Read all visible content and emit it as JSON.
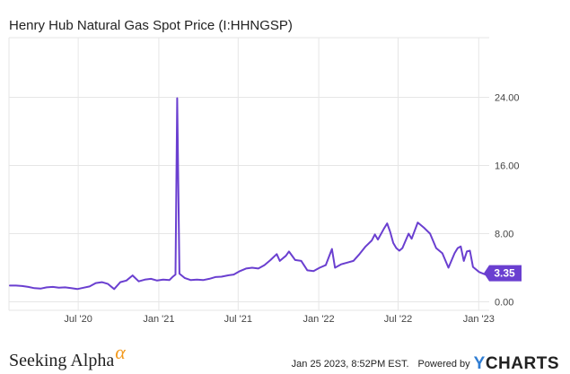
{
  "header": {
    "title": "Henry Hub Natural Gas Spot Price (I:HHNGSP)"
  },
  "footer": {
    "brand": "Seeking Alpha",
    "brand_alpha": "α",
    "timestamp": "Jan 25 2023, 8:52PM EST.",
    "powered_by": "Powered by",
    "ycharts_y": "Y",
    "ycharts_rest": "CHARTS"
  },
  "colors": {
    "line": "#6a3fd0",
    "grid": "#e6e6e6",
    "badge": "#6a3fd0",
    "brand_alpha": "#f39a1e",
    "ycharts_y": "#2f7dd3"
  },
  "chart_data": {
    "type": "line",
    "title": "Henry Hub Natural Gas Spot Price (I:HHNGSP)",
    "x_ticks": [
      {
        "date": "2020-07-01",
        "label": "Jul '20"
      },
      {
        "date": "2021-01-01",
        "label": "Jan '21"
      },
      {
        "date": "2021-07-01",
        "label": "Jul '21"
      },
      {
        "date": "2022-01-01",
        "label": "Jan '22"
      },
      {
        "date": "2022-07-01",
        "label": "Jul '22"
      },
      {
        "date": "2023-01-01",
        "label": "Jan '23"
      }
    ],
    "y_ticks": [
      {
        "value": 0,
        "label": "0.00"
      },
      {
        "value": 8,
        "label": "8.00"
      },
      {
        "value": 16,
        "label": "16.00"
      },
      {
        "value": 24,
        "label": "24.00"
      }
    ],
    "xlim": [
      "2020-01-25",
      "2023-01-25"
    ],
    "ylim": [
      -1,
      31
    ],
    "grid": true,
    "last_value_label": "3.35",
    "series": [
      {
        "points": [
          [
            "2020-01-27",
            1.9
          ],
          [
            "2020-02-10",
            1.9
          ],
          [
            "2020-02-24",
            1.85
          ],
          [
            "2020-03-09",
            1.75
          ],
          [
            "2020-03-23",
            1.6
          ],
          [
            "2020-04-06",
            1.55
          ],
          [
            "2020-04-20",
            1.7
          ],
          [
            "2020-05-04",
            1.75
          ],
          [
            "2020-05-18",
            1.65
          ],
          [
            "2020-06-01",
            1.7
          ],
          [
            "2020-06-15",
            1.6
          ],
          [
            "2020-06-29",
            1.5
          ],
          [
            "2020-07-13",
            1.65
          ],
          [
            "2020-07-27",
            1.8
          ],
          [
            "2020-08-10",
            2.2
          ],
          [
            "2020-08-24",
            2.3
          ],
          [
            "2020-09-07",
            2.1
          ],
          [
            "2020-09-21",
            1.5
          ],
          [
            "2020-10-05",
            2.3
          ],
          [
            "2020-10-19",
            2.5
          ],
          [
            "2020-11-02",
            3.1
          ],
          [
            "2020-11-16",
            2.4
          ],
          [
            "2020-11-30",
            2.6
          ],
          [
            "2020-12-14",
            2.7
          ],
          [
            "2020-12-28",
            2.5
          ],
          [
            "2021-01-11",
            2.6
          ],
          [
            "2021-01-25",
            2.55
          ],
          [
            "2021-02-01",
            2.9
          ],
          [
            "2021-02-08",
            3.2
          ],
          [
            "2021-02-12",
            23.9
          ],
          [
            "2021-02-17",
            3.3
          ],
          [
            "2021-03-01",
            2.8
          ],
          [
            "2021-03-15",
            2.55
          ],
          [
            "2021-03-29",
            2.6
          ],
          [
            "2021-04-12",
            2.55
          ],
          [
            "2021-04-26",
            2.7
          ],
          [
            "2021-05-10",
            2.9
          ],
          [
            "2021-05-24",
            2.95
          ],
          [
            "2021-06-07",
            3.1
          ],
          [
            "2021-06-21",
            3.2
          ],
          [
            "2021-07-05",
            3.6
          ],
          [
            "2021-07-19",
            3.9
          ],
          [
            "2021-08-02",
            4.0
          ],
          [
            "2021-08-16",
            3.9
          ],
          [
            "2021-08-30",
            4.3
          ],
          [
            "2021-09-13",
            4.9
          ],
          [
            "2021-09-27",
            5.6
          ],
          [
            "2021-10-04",
            4.8
          ],
          [
            "2021-10-18",
            5.4
          ],
          [
            "2021-10-25",
            5.9
          ],
          [
            "2021-11-08",
            4.9
          ],
          [
            "2021-11-22",
            4.8
          ],
          [
            "2021-12-06",
            3.7
          ],
          [
            "2021-12-20",
            3.6
          ],
          [
            "2022-01-03",
            4.0
          ],
          [
            "2022-01-17",
            4.3
          ],
          [
            "2022-01-31",
            6.2
          ],
          [
            "2022-02-07",
            4.0
          ],
          [
            "2022-02-21",
            4.4
          ],
          [
            "2022-03-07",
            4.6
          ],
          [
            "2022-03-21",
            4.8
          ],
          [
            "2022-04-04",
            5.6
          ],
          [
            "2022-04-18",
            6.5
          ],
          [
            "2022-05-02",
            7.2
          ],
          [
            "2022-05-09",
            7.9
          ],
          [
            "2022-05-16",
            7.3
          ],
          [
            "2022-05-30",
            8.6
          ],
          [
            "2022-06-06",
            9.2
          ],
          [
            "2022-06-13",
            8.2
          ],
          [
            "2022-06-20",
            6.9
          ],
          [
            "2022-06-27",
            6.3
          ],
          [
            "2022-07-04",
            6.0
          ],
          [
            "2022-07-11",
            6.3
          ],
          [
            "2022-07-25",
            8.0
          ],
          [
            "2022-08-01",
            7.4
          ],
          [
            "2022-08-15",
            9.3
          ],
          [
            "2022-08-29",
            8.7
          ],
          [
            "2022-09-12",
            8.0
          ],
          [
            "2022-09-26",
            6.3
          ],
          [
            "2022-10-10",
            5.7
          ],
          [
            "2022-10-24",
            4.0
          ],
          [
            "2022-11-07",
            5.7
          ],
          [
            "2022-11-14",
            6.3
          ],
          [
            "2022-11-21",
            6.5
          ],
          [
            "2022-11-28",
            4.8
          ],
          [
            "2022-12-05",
            5.9
          ],
          [
            "2022-12-12",
            6.0
          ],
          [
            "2022-12-19",
            4.1
          ],
          [
            "2023-01-02",
            3.5
          ],
          [
            "2023-01-16",
            3.2
          ],
          [
            "2023-01-23",
            3.35
          ]
        ]
      }
    ]
  }
}
